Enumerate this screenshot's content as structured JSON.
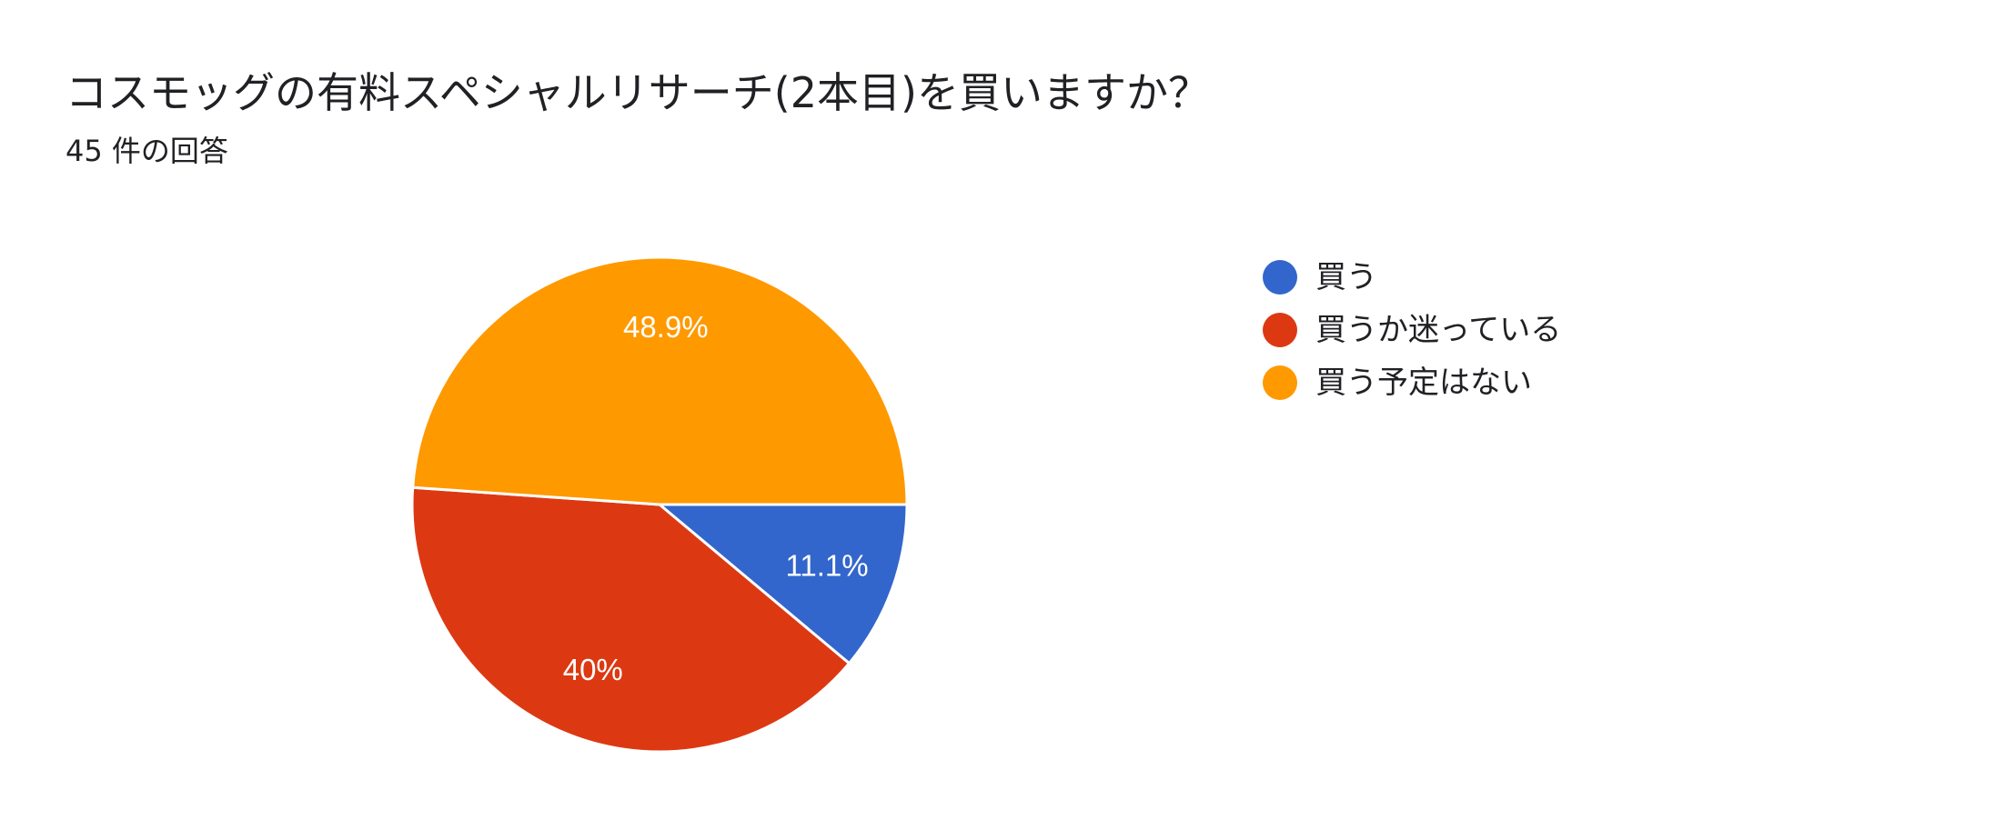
{
  "header": {
    "title": "コスモッグの有料スペシャルリサーチ(2本目)を買いますか？",
    "response_count": "45 件の回答"
  },
  "chart_data": {
    "type": "pie",
    "title": "コスモッグの有料スペシャルリサーチ(2本目)を買いますか？",
    "subtitle": "45 件の回答",
    "total_responses": 45,
    "legend_position": "right",
    "slices": [
      {
        "label": "買う",
        "value": 11.1,
        "display": "11.1%",
        "color": "#3366cc"
      },
      {
        "label": "買うか迷っている",
        "value": 40.0,
        "display": "40%",
        "color": "#dc3912"
      },
      {
        "label": "買う予定はない",
        "value": 48.9,
        "display": "48.9%",
        "color": "#ff9900"
      }
    ]
  }
}
